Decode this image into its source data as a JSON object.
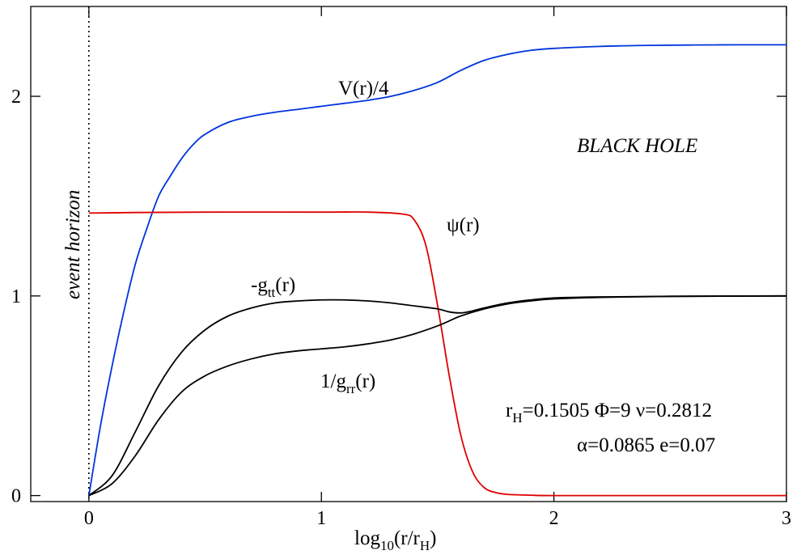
{
  "chart_data": {
    "type": "line",
    "title": "BLACK HOLE",
    "xlabel": {
      "prefix": "log",
      "sub": "10",
      "rest": "(r/r",
      "sub2": "H",
      "end": ")"
    },
    "ylabel": "",
    "xlim": [
      -0.25,
      3.0
    ],
    "ylim": [
      -0.03,
      2.45
    ],
    "x_ticks": [
      0,
      1,
      2,
      3
    ],
    "x_tick_labels": [
      "0",
      "1",
      "2",
      "3"
    ],
    "y_ticks": [
      0,
      1,
      2
    ],
    "y_tick_labels": [
      "0",
      "1",
      "2"
    ],
    "grid": false,
    "event_horizon": {
      "x": 0,
      "label": "event horizon"
    },
    "parameters": {
      "line1": {
        "r": "r",
        "r_sub": "H",
        "r_val": "=0.1505 Φ=9 ν=0.2812"
      },
      "line2": "α=0.0865 e=0.07"
    },
    "series": [
      {
        "id": "V",
        "name": "V(r)/4",
        "color": "#0033dd",
        "x": [
          0,
          0.05,
          0.1,
          0.15,
          0.2,
          0.25,
          0.3,
          0.35,
          0.4,
          0.45,
          0.5,
          0.6,
          0.7,
          0.8,
          0.9,
          1.0,
          1.1,
          1.2,
          1.3,
          1.4,
          1.5,
          1.6,
          1.7,
          1.8,
          1.9,
          2.0,
          2.2,
          2.4,
          2.6,
          2.8,
          3.0
        ],
        "y": [
          0.0,
          0.35,
          0.65,
          0.92,
          1.16,
          1.34,
          1.5,
          1.6,
          1.69,
          1.76,
          1.81,
          1.87,
          1.9,
          1.92,
          1.935,
          1.95,
          1.965,
          1.98,
          2.0,
          2.03,
          2.07,
          2.13,
          2.18,
          2.21,
          2.23,
          2.24,
          2.25,
          2.255,
          2.257,
          2.258,
          2.258
        ]
      },
      {
        "id": "psi",
        "name": "ψ(r)",
        "color": "#e00000",
        "x": [
          0,
          0.2,
          0.5,
          1.0,
          1.2,
          1.35,
          1.4,
          1.45,
          1.5,
          1.55,
          1.6,
          1.65,
          1.7,
          1.75,
          1.8,
          1.9,
          2.0,
          2.5,
          3.0
        ],
        "y": [
          1.415,
          1.418,
          1.42,
          1.42,
          1.42,
          1.41,
          1.38,
          1.25,
          0.95,
          0.6,
          0.3,
          0.12,
          0.04,
          0.015,
          0.006,
          0.002,
          0.0,
          0.0,
          0.0
        ]
      },
      {
        "id": "gtt",
        "name": "-g_tt(r)",
        "label": {
          "prefix": "-g",
          "sub": "tt",
          "rest": "(r)"
        },
        "color": "#000000",
        "x": [
          0,
          0.1,
          0.2,
          0.3,
          0.4,
          0.5,
          0.6,
          0.7,
          0.8,
          0.9,
          1.0,
          1.1,
          1.2,
          1.3,
          1.4,
          1.5,
          1.55,
          1.6,
          1.65,
          1.7,
          1.8,
          1.9,
          2.0,
          2.2,
          2.5,
          3.0
        ],
        "y": [
          0.0,
          0.1,
          0.32,
          0.55,
          0.72,
          0.83,
          0.9,
          0.94,
          0.965,
          0.975,
          0.98,
          0.98,
          0.975,
          0.965,
          0.95,
          0.935,
          0.92,
          0.915,
          0.925,
          0.94,
          0.965,
          0.98,
          0.99,
          0.995,
          0.998,
          1.0
        ]
      },
      {
        "id": "grr",
        "name": "1/g_rr(r)",
        "label": {
          "prefix": "1/g",
          "sub": "rr",
          "rest": "(r)"
        },
        "color": "#000000",
        "x": [
          0,
          0.1,
          0.2,
          0.3,
          0.4,
          0.5,
          0.6,
          0.7,
          0.8,
          0.9,
          1.0,
          1.1,
          1.2,
          1.3,
          1.4,
          1.5,
          1.55,
          1.6,
          1.7,
          1.8,
          1.9,
          2.0,
          2.2,
          2.5,
          3.0
        ],
        "y": [
          0.0,
          0.06,
          0.2,
          0.38,
          0.52,
          0.6,
          0.65,
          0.685,
          0.71,
          0.725,
          0.735,
          0.745,
          0.76,
          0.78,
          0.81,
          0.85,
          0.875,
          0.9,
          0.935,
          0.96,
          0.975,
          0.985,
          0.993,
          0.998,
          1.0
        ]
      }
    ]
  }
}
